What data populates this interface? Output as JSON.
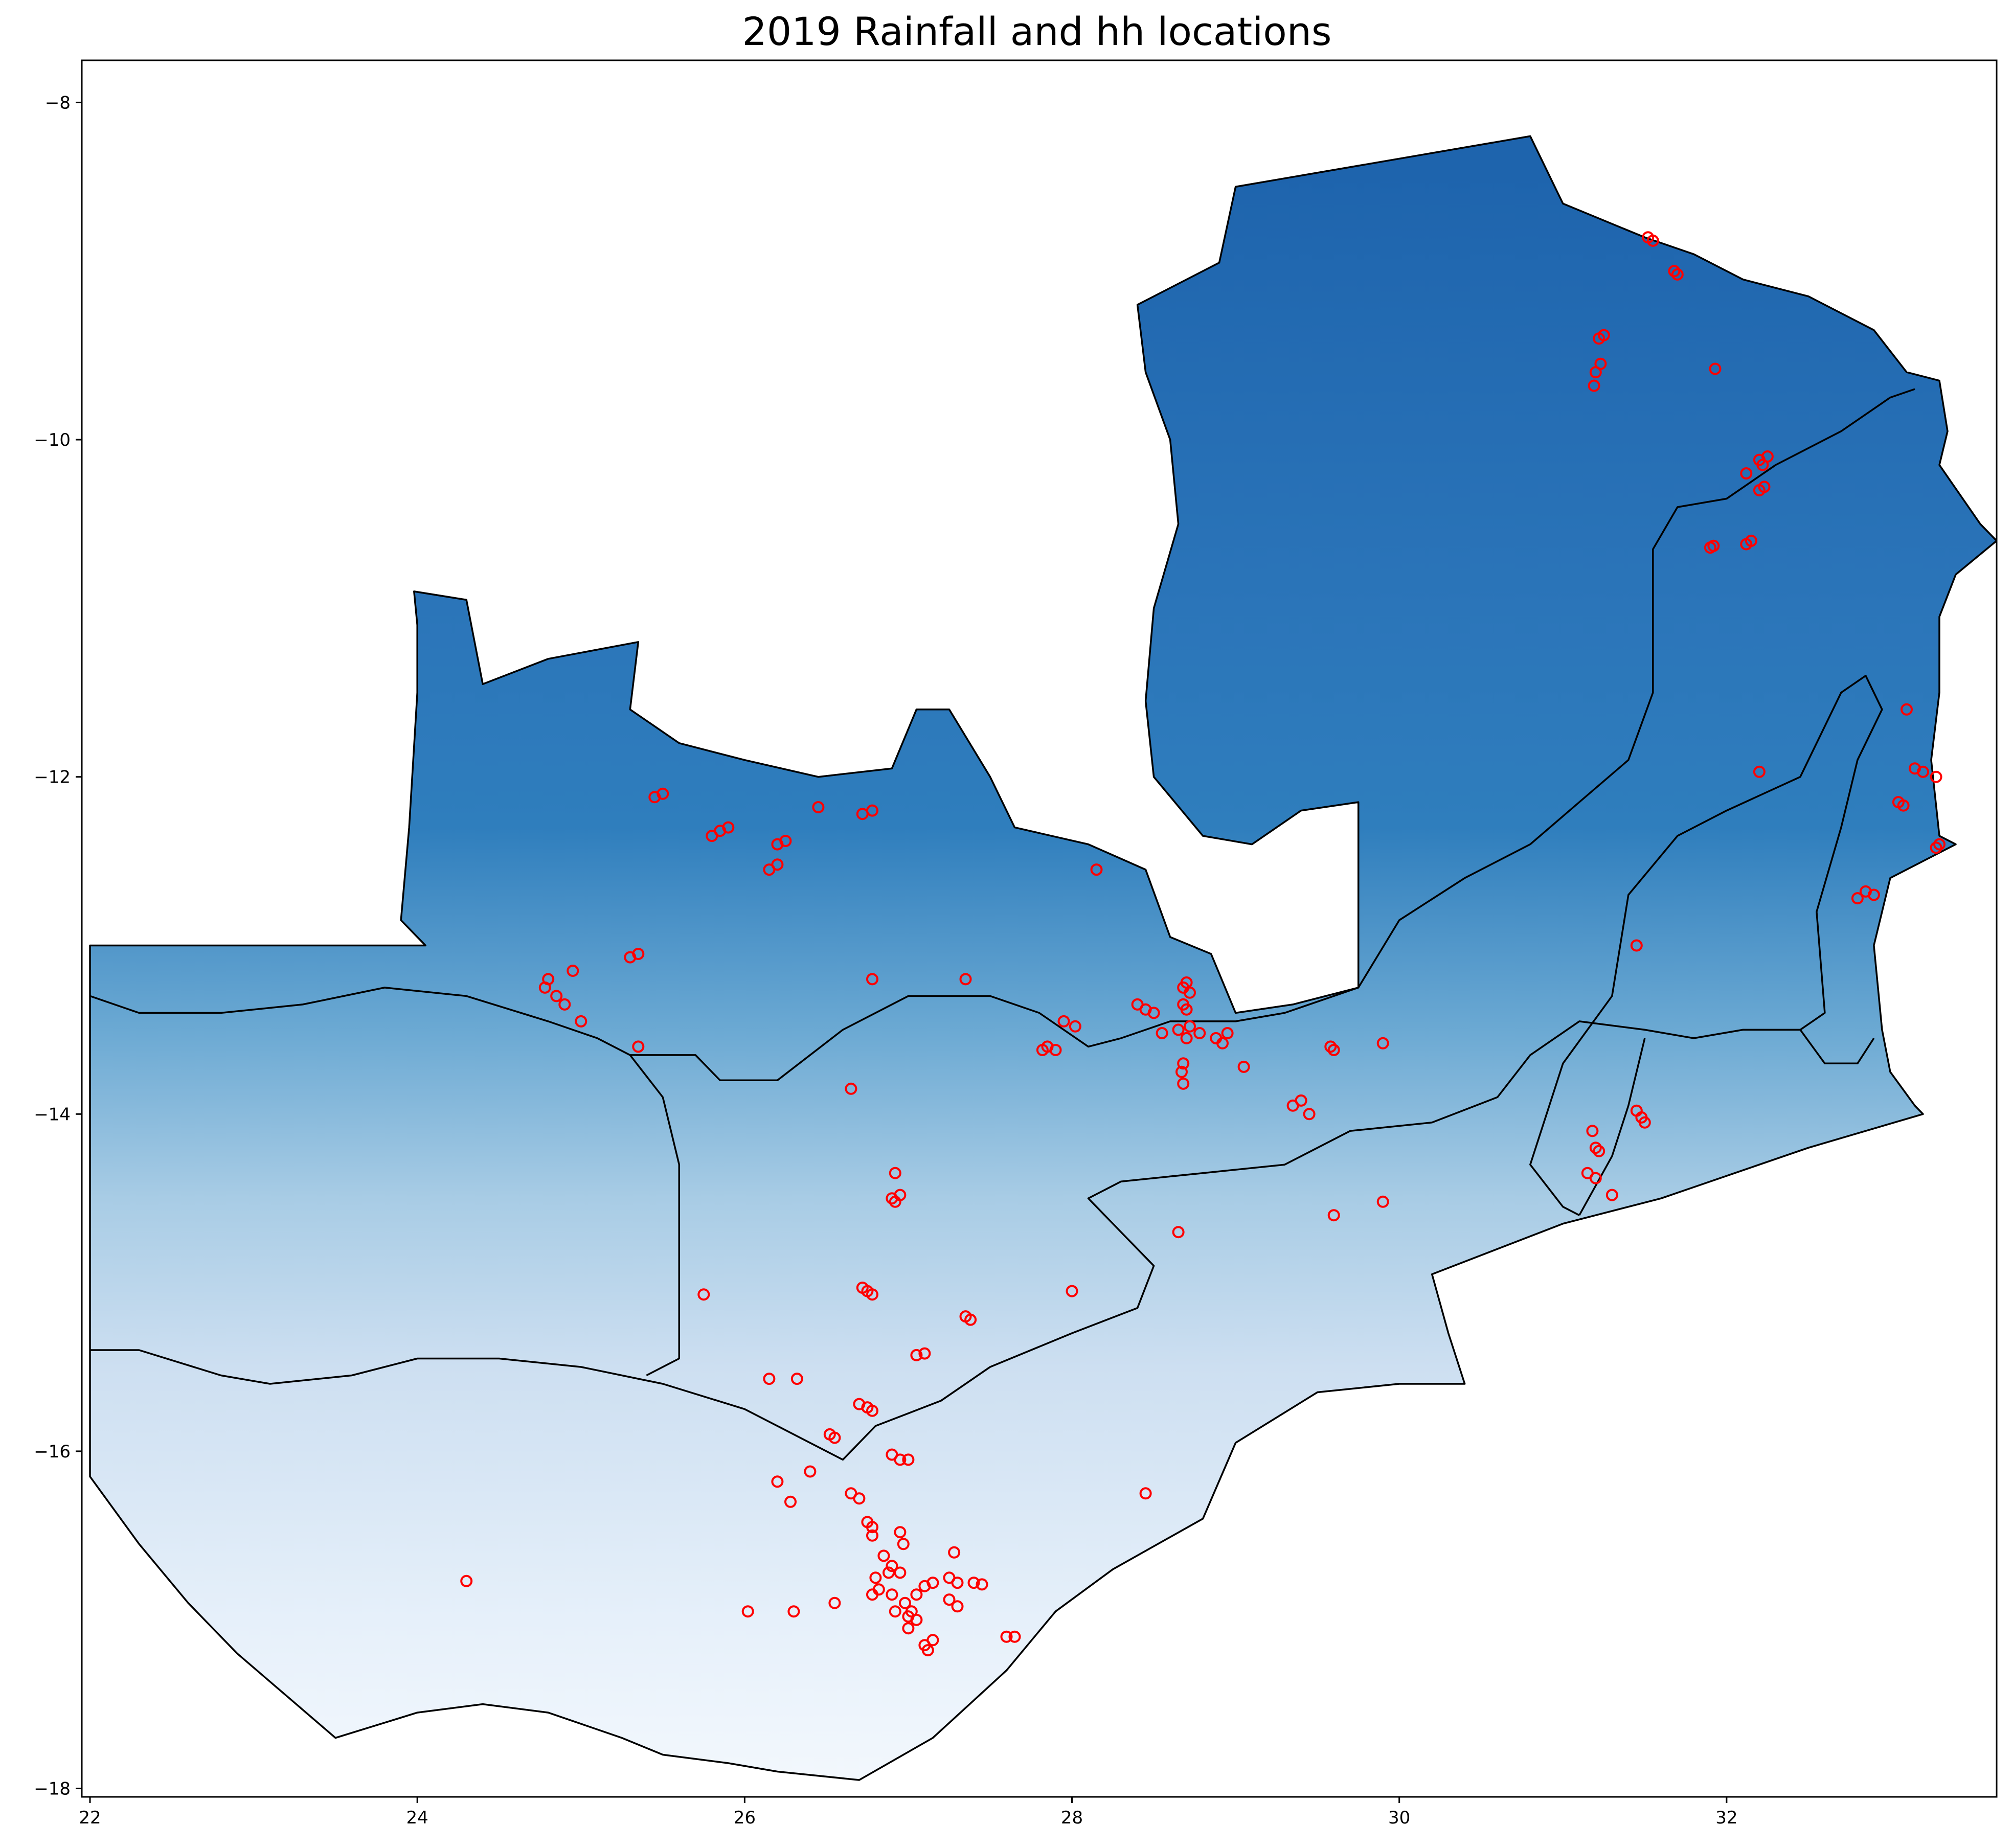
{
  "chart_data": {
    "type": "scatter",
    "title": "2019 Rainfall and hh locations",
    "xlabel": "",
    "ylabel": "",
    "xlim": [
      21.95,
      33.65
    ],
    "ylim": [
      -18.05,
      -7.75
    ],
    "xticks": [
      {
        "value": 22,
        "label": "22"
      },
      {
        "value": 24,
        "label": "24"
      },
      {
        "value": 26,
        "label": "26"
      },
      {
        "value": 28,
        "label": "28"
      },
      {
        "value": 30,
        "label": "30"
      },
      {
        "value": 32,
        "label": "32"
      }
    ],
    "yticks": [
      {
        "value": -8,
        "label": "−8"
      },
      {
        "value": -10,
        "label": "−10"
      },
      {
        "value": -12,
        "label": "−12"
      },
      {
        "value": -14,
        "label": "−14"
      },
      {
        "value": -16,
        "label": "−16"
      },
      {
        "value": -18,
        "label": "−18"
      }
    ],
    "grid": false,
    "colormap": "Blues",
    "colors": {
      "points": "#ff0000",
      "outline": "#000000",
      "dark_blue": "#08306b",
      "mid_blue": "#2171b5",
      "light_blue": "#c6dbef",
      "lightest_blue": "#f7fbff"
    },
    "rainfall_gradient": [
      {
        "lat": -8.4,
        "color": "#1e64ad"
      },
      {
        "lat": -11.0,
        "color": "#2b75b9"
      },
      {
        "lat": -12.3,
        "color": "#2f7ebd"
      },
      {
        "lat": -13.5,
        "color": "#6ba9d3"
      },
      {
        "lat": -14.5,
        "color": "#a8cce5"
      },
      {
        "lat": -15.5,
        "color": "#cddff1"
      },
      {
        "lat": -17.0,
        "color": "#e6f0fa"
      },
      {
        "lat": -18.0,
        "color": "#f3f8fd"
      }
    ],
    "country_outline": [
      [
        22.0,
        -13.0
      ],
      [
        24.05,
        -13.0
      ],
      [
        23.9,
        -12.85
      ],
      [
        23.95,
        -12.3
      ],
      [
        24.0,
        -11.5
      ],
      [
        24.0,
        -11.1
      ],
      [
        23.98,
        -10.9
      ],
      [
        24.3,
        -10.95
      ],
      [
        24.35,
        -11.2
      ],
      [
        24.4,
        -11.45
      ],
      [
        24.8,
        -11.3
      ],
      [
        25.35,
        -11.2
      ],
      [
        25.3,
        -11.6
      ],
      [
        25.6,
        -11.8
      ],
      [
        26.0,
        -11.9
      ],
      [
        26.45,
        -12.0
      ],
      [
        26.9,
        -11.95
      ],
      [
        27.05,
        -11.6
      ],
      [
        27.25,
        -11.6
      ],
      [
        27.5,
        -12.0
      ],
      [
        27.65,
        -12.3
      ],
      [
        28.1,
        -12.4
      ],
      [
        28.45,
        -12.55
      ],
      [
        28.6,
        -12.95
      ],
      [
        28.85,
        -13.05
      ],
      [
        29.0,
        -13.4
      ],
      [
        29.35,
        -13.35
      ],
      [
        29.75,
        -13.25
      ],
      [
        29.75,
        -12.15
      ],
      [
        29.4,
        -12.2
      ],
      [
        29.1,
        -12.4
      ],
      [
        28.8,
        -12.35
      ],
      [
        28.5,
        -12.0
      ],
      [
        28.45,
        -11.55
      ],
      [
        28.5,
        -11.0
      ],
      [
        28.65,
        -10.5
      ],
      [
        28.6,
        -10.0
      ],
      [
        28.45,
        -9.6
      ],
      [
        28.4,
        -9.2
      ],
      [
        28.9,
        -8.95
      ],
      [
        29.0,
        -8.5
      ],
      [
        30.8,
        -8.2
      ],
      [
        31.0,
        -8.6
      ],
      [
        31.5,
        -8.8
      ],
      [
        31.8,
        -8.9
      ],
      [
        32.1,
        -9.05
      ],
      [
        32.5,
        -9.15
      ],
      [
        32.9,
        -9.35
      ],
      [
        33.1,
        -9.6
      ],
      [
        33.3,
        -9.65
      ],
      [
        33.35,
        -9.95
      ],
      [
        33.3,
        -10.15
      ],
      [
        33.55,
        -10.5
      ],
      [
        33.65,
        -10.6
      ],
      [
        33.4,
        -10.8
      ],
      [
        33.3,
        -11.05
      ],
      [
        33.3,
        -11.5
      ],
      [
        33.25,
        -11.9
      ],
      [
        33.3,
        -12.35
      ],
      [
        33.4,
        -12.4
      ],
      [
        33.0,
        -12.6
      ],
      [
        32.9,
        -13.0
      ],
      [
        32.95,
        -13.5
      ],
      [
        33.0,
        -13.75
      ],
      [
        33.15,
        -13.95
      ],
      [
        33.2,
        -14.0
      ],
      [
        32.5,
        -14.2
      ],
      [
        31.6,
        -14.5
      ],
      [
        31.0,
        -14.65
      ],
      [
        30.2,
        -14.95
      ],
      [
        30.3,
        -15.3
      ],
      [
        30.4,
        -15.6
      ],
      [
        30.0,
        -15.6
      ],
      [
        29.5,
        -15.65
      ],
      [
        29.0,
        -15.95
      ],
      [
        28.8,
        -16.4
      ],
      [
        28.25,
        -16.7
      ],
      [
        27.9,
        -16.95
      ],
      [
        27.6,
        -17.3
      ],
      [
        27.15,
        -17.7
      ],
      [
        26.7,
        -17.95
      ],
      [
        26.2,
        -17.9
      ],
      [
        25.9,
        -17.85
      ],
      [
        25.5,
        -17.8
      ],
      [
        25.25,
        -17.7
      ],
      [
        24.8,
        -17.55
      ],
      [
        24.4,
        -17.5
      ],
      [
        24.0,
        -17.55
      ],
      [
        23.5,
        -17.7
      ],
      [
        23.2,
        -17.45
      ],
      [
        22.9,
        -17.2
      ],
      [
        22.6,
        -16.9
      ],
      [
        22.3,
        -16.55
      ],
      [
        22.0,
        -16.15
      ],
      [
        22.0,
        -13.0
      ]
    ],
    "province_boundaries": [
      [
        [
          22.0,
          -13.3
        ],
        [
          22.3,
          -13.4
        ],
        [
          22.8,
          -13.4
        ],
        [
          23.3,
          -13.35
        ],
        [
          23.8,
          -13.25
        ],
        [
          24.3,
          -13.3
        ],
        [
          24.8,
          -13.45
        ],
        [
          25.1,
          -13.55
        ],
        [
          25.3,
          -13.65
        ],
        [
          25.7,
          -13.65
        ],
        [
          25.85,
          -13.8
        ],
        [
          26.2,
          -13.8
        ],
        [
          26.6,
          -13.5
        ],
        [
          27.0,
          -13.3
        ],
        [
          27.5,
          -13.3
        ],
        [
          27.8,
          -13.4
        ],
        [
          28.1,
          -13.6
        ],
        [
          28.3,
          -13.55
        ],
        [
          28.6,
          -13.45
        ],
        [
          29.0,
          -13.45
        ],
        [
          29.3,
          -13.4
        ],
        [
          29.75,
          -13.25
        ]
      ],
      [
        [
          25.3,
          -13.65
        ],
        [
          25.5,
          -13.9
        ],
        [
          25.6,
          -14.3
        ],
        [
          25.6,
          -14.9
        ],
        [
          25.6,
          -15.45
        ],
        [
          25.4,
          -15.55
        ]
      ],
      [
        [
          22.0,
          -15.4
        ],
        [
          22.3,
          -15.4
        ],
        [
          22.8,
          -15.55
        ],
        [
          23.1,
          -15.6
        ],
        [
          23.6,
          -15.55
        ],
        [
          24.0,
          -15.45
        ],
        [
          24.5,
          -15.45
        ],
        [
          25.0,
          -15.5
        ],
        [
          25.5,
          -15.6
        ],
        [
          26.0,
          -15.75
        ],
        [
          26.4,
          -15.95
        ],
        [
          26.6,
          -16.05
        ],
        [
          26.8,
          -15.85
        ],
        [
          27.2,
          -15.7
        ],
        [
          27.5,
          -15.5
        ],
        [
          28.0,
          -15.3
        ],
        [
          28.4,
          -15.15
        ],
        [
          28.5,
          -14.9
        ],
        [
          28.3,
          -14.7
        ],
        [
          28.1,
          -14.5
        ],
        [
          28.3,
          -14.4
        ],
        [
          28.8,
          -14.35
        ],
        [
          29.3,
          -14.3
        ],
        [
          29.7,
          -14.1
        ],
        [
          30.2,
          -14.05
        ],
        [
          30.6,
          -13.9
        ],
        [
          30.8,
          -13.65
        ],
        [
          31.1,
          -13.45
        ],
        [
          31.5,
          -13.5
        ],
        [
          31.8,
          -13.55
        ],
        [
          32.1,
          -13.5
        ],
        [
          32.45,
          -13.5
        ],
        [
          32.6,
          -13.4
        ],
        [
          32.55,
          -12.8
        ],
        [
          32.7,
          -12.3
        ],
        [
          32.8,
          -11.9
        ],
        [
          32.95,
          -11.6
        ],
        [
          32.85,
          -11.4
        ],
        [
          32.7,
          -11.5
        ],
        [
          32.45,
          -12.0
        ],
        [
          32.0,
          -12.2
        ],
        [
          31.7,
          -12.35
        ],
        [
          31.4,
          -12.7
        ],
        [
          31.3,
          -13.3
        ],
        [
          31.0,
          -13.7
        ],
        [
          30.9,
          -14.0
        ],
        [
          30.8,
          -14.3
        ],
        [
          31.0,
          -14.55
        ],
        [
          31.1,
          -14.6
        ]
      ],
      [
        [
          29.75,
          -13.25
        ],
        [
          30.0,
          -12.85
        ],
        [
          30.4,
          -12.6
        ],
        [
          30.8,
          -12.4
        ],
        [
          31.1,
          -12.15
        ],
        [
          31.4,
          -11.9
        ],
        [
          31.55,
          -11.5
        ],
        [
          31.55,
          -11.0
        ],
        [
          31.55,
          -10.65
        ],
        [
          31.7,
          -10.4
        ],
        [
          32.0,
          -10.35
        ],
        [
          32.3,
          -10.15
        ],
        [
          32.7,
          -9.95
        ],
        [
          33.0,
          -9.75
        ],
        [
          33.15,
          -9.7
        ]
      ],
      [
        [
          31.5,
          -13.55
        ],
        [
          31.4,
          -13.95
        ],
        [
          31.3,
          -14.25
        ],
        [
          31.1,
          -14.6
        ]
      ],
      [
        [
          32.45,
          -13.5
        ],
        [
          32.6,
          -13.7
        ],
        [
          32.8,
          -13.7
        ],
        [
          32.9,
          -13.55
        ]
      ]
    ],
    "hh_locations": [
      [
        31.55,
        -8.82
      ],
      [
        31.52,
        -8.8
      ],
      [
        31.7,
        -9.02
      ],
      [
        31.68,
        -9.0
      ],
      [
        31.25,
        -9.38
      ],
      [
        31.22,
        -9.4
      ],
      [
        31.23,
        -9.55
      ],
      [
        31.2,
        -9.6
      ],
      [
        31.19,
        -9.68
      ],
      [
        31.93,
        -9.58
      ],
      [
        32.25,
        -10.1
      ],
      [
        32.22,
        -10.15
      ],
      [
        32.2,
        -10.12
      ],
      [
        32.12,
        -10.2
      ],
      [
        32.2,
        -10.3
      ],
      [
        32.23,
        -10.28
      ],
      [
        31.92,
        -10.63
      ],
      [
        31.9,
        -10.64
      ],
      [
        32.12,
        -10.62
      ],
      [
        32.15,
        -10.6
      ],
      [
        25.5,
        -12.1
      ],
      [
        25.45,
        -12.12
      ],
      [
        25.85,
        -12.32
      ],
      [
        25.9,
        -12.3
      ],
      [
        25.8,
        -12.35
      ],
      [
        26.25,
        -12.38
      ],
      [
        26.2,
        -12.4
      ],
      [
        26.15,
        -12.55
      ],
      [
        26.2,
        -12.52
      ],
      [
        26.45,
        -12.18
      ],
      [
        26.78,
        -12.2
      ],
      [
        26.72,
        -12.22
      ],
      [
        28.15,
        -12.55
      ],
      [
        24.8,
        -13.2
      ],
      [
        24.78,
        -13.25
      ],
      [
        24.9,
        -13.35
      ],
      [
        24.85,
        -13.3
      ],
      [
        24.95,
        -13.15
      ],
      [
        25.0,
        -13.45
      ],
      [
        25.35,
        -13.05
      ],
      [
        25.3,
        -13.07
      ],
      [
        26.78,
        -13.2
      ],
      [
        27.35,
        -13.2
      ],
      [
        25.35,
        -13.6
      ],
      [
        26.65,
        -13.85
      ],
      [
        27.85,
        -13.6
      ],
      [
        27.82,
        -13.62
      ],
      [
        27.9,
        -13.62
      ],
      [
        27.95,
        -13.45
      ],
      [
        28.02,
        -13.48
      ],
      [
        28.4,
        -13.35
      ],
      [
        28.45,
        -13.38
      ],
      [
        28.5,
        -13.4
      ],
      [
        28.55,
        -13.52
      ],
      [
        28.7,
        -13.22
      ],
      [
        28.68,
        -13.25
      ],
      [
        28.72,
        -13.28
      ],
      [
        28.68,
        -13.35
      ],
      [
        28.7,
        -13.38
      ],
      [
        28.65,
        -13.5
      ],
      [
        28.7,
        -13.55
      ],
      [
        28.72,
        -13.48
      ],
      [
        28.78,
        -13.52
      ],
      [
        28.68,
        -13.7
      ],
      [
        28.67,
        -13.75
      ],
      [
        28.68,
        -13.82
      ],
      [
        28.88,
        -13.55
      ],
      [
        28.92,
        -13.58
      ],
      [
        28.95,
        -13.52
      ],
      [
        29.05,
        -13.72
      ],
      [
        29.35,
        -13.95
      ],
      [
        29.4,
        -13.92
      ],
      [
        29.45,
        -14.0
      ],
      [
        29.58,
        -13.6
      ],
      [
        29.6,
        -13.62
      ],
      [
        29.9,
        -13.58
      ],
      [
        28.65,
        -14.7
      ],
      [
        29.6,
        -14.6
      ],
      [
        29.9,
        -14.52
      ],
      [
        31.18,
        -14.1
      ],
      [
        31.2,
        -14.2
      ],
      [
        31.22,
        -14.22
      ],
      [
        31.15,
        -14.35
      ],
      [
        31.2,
        -14.38
      ],
      [
        31.3,
        -14.48
      ],
      [
        31.45,
        -13.98
      ],
      [
        31.48,
        -14.02
      ],
      [
        31.5,
        -14.05
      ],
      [
        31.45,
        -13.0
      ],
      [
        32.2,
        -11.97
      ],
      [
        33.1,
        -11.6
      ],
      [
        33.15,
        -11.95
      ],
      [
        33.2,
        -11.97
      ],
      [
        33.28,
        -12.0
      ],
      [
        33.05,
        -12.15
      ],
      [
        33.08,
        -12.17
      ],
      [
        33.3,
        -12.4
      ],
      [
        33.28,
        -12.42
      ],
      [
        32.85,
        -12.68
      ],
      [
        32.9,
        -12.7
      ],
      [
        32.8,
        -12.72
      ],
      [
        26.92,
        -14.35
      ],
      [
        26.9,
        -14.5
      ],
      [
        26.95,
        -14.48
      ],
      [
        26.92,
        -14.52
      ],
      [
        26.75,
        -15.05
      ],
      [
        26.72,
        -15.03
      ],
      [
        26.78,
        -15.07
      ],
      [
        25.75,
        -15.07
      ],
      [
        27.05,
        -15.43
      ],
      [
        27.1,
        -15.42
      ],
      [
        27.35,
        -15.2
      ],
      [
        27.38,
        -15.22
      ],
      [
        26.15,
        -15.57
      ],
      [
        26.32,
        -15.57
      ],
      [
        26.7,
        -15.72
      ],
      [
        26.75,
        -15.74
      ],
      [
        26.78,
        -15.76
      ],
      [
        26.52,
        -15.9
      ],
      [
        26.55,
        -15.92
      ],
      [
        26.9,
        -16.02
      ],
      [
        26.95,
        -16.05
      ],
      [
        27.0,
        -16.05
      ],
      [
        26.2,
        -16.18
      ],
      [
        26.4,
        -16.12
      ],
      [
        26.28,
        -16.3
      ],
      [
        26.65,
        -16.25
      ],
      [
        26.7,
        -16.28
      ],
      [
        26.75,
        -16.42
      ],
      [
        26.78,
        -16.45
      ],
      [
        26.78,
        -16.5
      ],
      [
        26.95,
        -16.48
      ],
      [
        26.97,
        -16.55
      ],
      [
        26.85,
        -16.62
      ],
      [
        26.9,
        -16.68
      ],
      [
        26.88,
        -16.72
      ],
      [
        26.8,
        -16.75
      ],
      [
        26.95,
        -16.72
      ],
      [
        26.82,
        -16.82
      ],
      [
        26.78,
        -16.85
      ],
      [
        26.9,
        -16.85
      ],
      [
        26.98,
        -16.9
      ],
      [
        27.02,
        -16.95
      ],
      [
        27.05,
        -16.85
      ],
      [
        27.1,
        -16.8
      ],
      [
        27.15,
        -16.78
      ],
      [
        27.25,
        -16.75
      ],
      [
        27.3,
        -16.78
      ],
      [
        27.25,
        -16.88
      ],
      [
        27.3,
        -16.92
      ],
      [
        27.05,
        -17.0
      ],
      [
        27.0,
        -16.98
      ],
      [
        27.1,
        -17.15
      ],
      [
        27.12,
        -17.18
      ],
      [
        27.15,
        -17.12
      ],
      [
        27.0,
        -17.05
      ],
      [
        26.92,
        -16.95
      ],
      [
        27.28,
        -16.6
      ],
      [
        27.4,
        -16.78
      ],
      [
        27.45,
        -16.79
      ],
      [
        27.6,
        -17.1
      ],
      [
        27.65,
        -17.1
      ],
      [
        26.55,
        -16.9
      ],
      [
        26.3,
        -16.95
      ],
      [
        26.02,
        -16.95
      ],
      [
        24.3,
        -16.77
      ],
      [
        28.45,
        -16.25
      ],
      [
        28.0,
        -15.05
      ]
    ]
  }
}
